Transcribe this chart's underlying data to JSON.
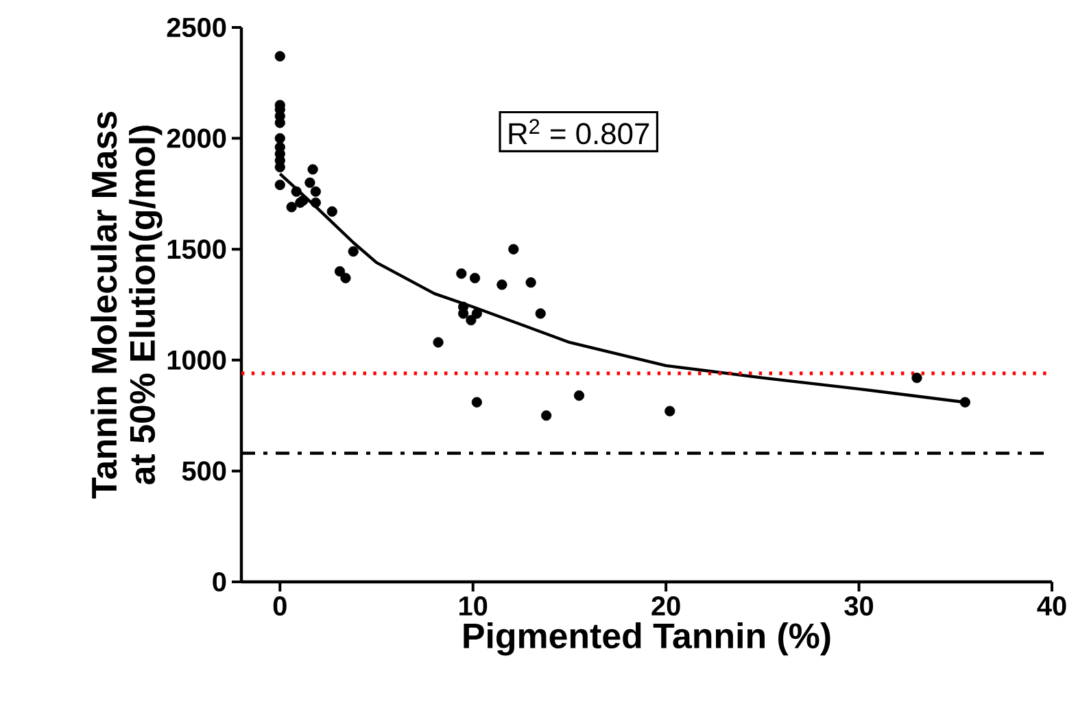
{
  "chart_data": {
    "type": "scatter",
    "xlabel": "Pigmented Tannin (%)",
    "ylabel": "Tannin Molecular Mass\nat 50% Elution(g/mol)",
    "xlim": [
      -2,
      40
    ],
    "xticks": [
      0,
      10,
      20,
      30,
      40
    ],
    "ylim": [
      0,
      2500
    ],
    "yticks": [
      0,
      500,
      1000,
      1500,
      2000,
      2500
    ],
    "grid": false,
    "series": [
      {
        "color": "#000000",
        "marker": "circle",
        "x": [
          0,
          0,
          0,
          0,
          0,
          0,
          0,
          0,
          0,
          0,
          0,
          0.6,
          0.85,
          1.05,
          1.2,
          1.7,
          1.55,
          1.85,
          1.85,
          2.7,
          3.8,
          3.1,
          3.4,
          8.2,
          9.4,
          10.1,
          9.5,
          9.5,
          10.2,
          9.9,
          12.1,
          11.5,
          13.0,
          13.5,
          10.2,
          13.8,
          15.5,
          20.2,
          33.0,
          35.5
        ],
        "values": [
          2370,
          2150,
          2130,
          2100,
          2070,
          2000,
          1960,
          1930,
          1900,
          1870,
          1790,
          1690,
          1760,
          1710,
          1720,
          1860,
          1800,
          1760,
          1710,
          1670,
          1490,
          1400,
          1370,
          1080,
          1390,
          1370,
          1240,
          1210,
          1210,
          1180,
          1500,
          1340,
          1350,
          1210,
          810,
          750,
          840,
          770,
          920,
          810
        ]
      },
      {
        "type": "line",
        "color": "#000000",
        "marker": "none",
        "line_style": "solid",
        "x": [
          0,
          1,
          2,
          3.8,
          5,
          8,
          10,
          15,
          20,
          25,
          30,
          35.5
        ],
        "values": [
          1840,
          1760,
          1680,
          1530,
          1440,
          1300,
          1240,
          1080,
          975,
          920,
          870,
          810
        ]
      }
    ],
    "ref_lines": [
      {
        "axis": "y",
        "value": 940,
        "color": "#ff0000",
        "line_style": "dotted"
      },
      {
        "axis": "y",
        "value": 580,
        "color": "#000000",
        "line_style": "dashdot"
      }
    ],
    "annotations": [
      "R$^{2}$ = 0.807"
    ]
  }
}
